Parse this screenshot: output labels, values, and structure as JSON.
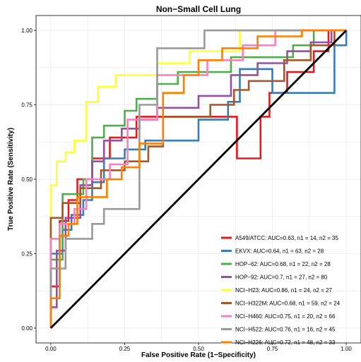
{
  "chart_data": {
    "type": "line",
    "title": "Non−Small Cell Lung",
    "xlabel": "False Positive Rate (1−Specificity)",
    "ylabel": "True Positive Rate (Sensitivity)",
    "xlim": [
      -0.05,
      1.05
    ],
    "ylim": [
      -0.05,
      1.05
    ],
    "x_ticks": [
      "0.00",
      "0.25",
      "0.50",
      "0.75",
      "1.00"
    ],
    "y_ticks": [
      "0.00",
      "0.25",
      "0.50",
      "0.75",
      "1.00"
    ],
    "x_tick_values": [
      0,
      0.25,
      0.5,
      0.75,
      1
    ],
    "y_tick_values": [
      0,
      0.25,
      0.5,
      0.75,
      1
    ],
    "grid": true,
    "legend_position": "bottom-right",
    "reference_line": {
      "x": [
        0,
        1
      ],
      "y": [
        0,
        1
      ],
      "color": "#000000"
    },
    "series": [
      {
        "name": "A549/ATCC: AUC=0.63, n1 = 14, n2 = 35",
        "color": "#e41a1c",
        "x": [
          0,
          0,
          0.03,
          0.03,
          0.06,
          0.06,
          0.09,
          0.09,
          0.14,
          0.14,
          0.2,
          0.2,
          0.29,
          0.29,
          0.43,
          0.63,
          0.63,
          0.71,
          0.71,
          0.74,
          0.74,
          0.8,
          0.8,
          0.89,
          0.89,
          0.94,
          0.94,
          1,
          1
        ],
        "y": [
          0,
          0.14,
          0.14,
          0.36,
          0.36,
          0.43,
          0.43,
          0.5,
          0.5,
          0.57,
          0.57,
          0.64,
          0.64,
          0.71,
          0.71,
          0.71,
          0.57,
          0.57,
          0.71,
          0.71,
          0.79,
          0.79,
          0.86,
          0.86,
          0.93,
          0.93,
          1,
          1,
          1
        ]
      },
      {
        "name": "EKVX: AUC=0.64, n1 = 63, n2 = 28",
        "color": "#377eb8",
        "x": [
          0,
          0,
          0.04,
          0.04,
          0.07,
          0.07,
          0.11,
          0.11,
          0.14,
          0.14,
          0.18,
          0.18,
          0.25,
          0.25,
          0.32,
          0.32,
          0.5,
          0.5,
          0.6,
          0.6,
          0.64,
          0.64,
          0.75,
          0.75,
          0.96,
          0.96,
          1,
          1
        ],
        "y": [
          0,
          0.25,
          0.25,
          0.33,
          0.33,
          0.38,
          0.38,
          0.43,
          0.43,
          0.49,
          0.49,
          0.57,
          0.57,
          0.6,
          0.6,
          0.63,
          0.63,
          0.7,
          0.7,
          0.76,
          0.76,
          0.87,
          0.87,
          0.79,
          0.79,
          0.95,
          0.95,
          1
        ]
      },
      {
        "name": "HOP−62: AUC=0.68, n1 = 22, n2 = 28",
        "color": "#4daf4a",
        "x": [
          0,
          0,
          0.04,
          0.04,
          0.11,
          0.11,
          0.14,
          0.14,
          0.18,
          0.18,
          0.25,
          0.25,
          0.29,
          0.29,
          0.36,
          0.36,
          0.43,
          0.43,
          0.54,
          0.54,
          0.61,
          0.61,
          0.68,
          0.68,
          0.82,
          0.82,
          0.89,
          0.89,
          1,
          1
        ],
        "y": [
          0,
          0.23,
          0.23,
          0.45,
          0.45,
          0.5,
          0.5,
          0.64,
          0.64,
          0.68,
          0.68,
          0.73,
          0.73,
          0.77,
          0.77,
          0.82,
          0.82,
          0.86,
          0.86,
          0.86,
          0.86,
          0.91,
          0.91,
          0.91,
          0.91,
          0.95,
          0.95,
          1,
          1,
          1
        ]
      },
      {
        "name": "HOP−92: AUC=0.7, n1 = 27, n2 = 80",
        "color": "#984ea3",
        "x": [
          0,
          0,
          0.02,
          0.02,
          0.05,
          0.05,
          0.1,
          0.1,
          0.14,
          0.14,
          0.18,
          0.18,
          0.24,
          0.24,
          0.3,
          0.3,
          0.36,
          0.36,
          0.5,
          0.5,
          0.61,
          0.61,
          0.7,
          0.7,
          0.8,
          0.8,
          0.88,
          0.88,
          0.95,
          0.95,
          1,
          1
        ],
        "y": [
          0,
          0.07,
          0.07,
          0.26,
          0.26,
          0.37,
          0.37,
          0.48,
          0.48,
          0.56,
          0.56,
          0.63,
          0.63,
          0.67,
          0.67,
          0.7,
          0.7,
          0.74,
          0.74,
          0.78,
          0.78,
          0.85,
          0.85,
          0.89,
          0.89,
          0.93,
          0.93,
          0.96,
          0.96,
          1,
          1,
          1
        ]
      },
      {
        "name": "NCI−H23: AUC=0.86, n1 = 24, n2 = 27",
        "color": "#ffff33",
        "x": [
          0,
          0,
          0.02,
          0.02,
          0.05,
          0.05,
          0.08,
          0.08,
          0.12,
          0.12,
          0.16,
          0.16,
          0.22,
          0.22,
          0.29,
          0.29,
          0.36,
          0.36,
          0.47,
          0.47,
          0.64,
          0.64,
          0.84,
          0.84,
          1
        ],
        "y": [
          0,
          0.48,
          0.48,
          0.56,
          0.56,
          0.59,
          0.59,
          0.63,
          0.63,
          0.76,
          0.76,
          0.81,
          0.81,
          0.85,
          0.85,
          0.85,
          0.85,
          0.89,
          0.89,
          0.93,
          0.93,
          1,
          1,
          1,
          1
        ]
      },
      {
        "name": "NCI−H322M: AUC=0.68, n1 = 59, n2 = 24",
        "color": "#a65628",
        "x": [
          0,
          0,
          0.04,
          0.04,
          0.1,
          0.1,
          0.17,
          0.17,
          0.25,
          0.25,
          0.33,
          0.33,
          0.38,
          0.38,
          0.54,
          0.54,
          0.62,
          0.62,
          0.67,
          0.67,
          0.79,
          0.79,
          0.88,
          0.88,
          0.96,
          0.96,
          1
        ],
        "y": [
          0,
          0.37,
          0.37,
          0.42,
          0.42,
          0.47,
          0.47,
          0.53,
          0.53,
          0.56,
          0.56,
          0.61,
          0.61,
          0.71,
          0.71,
          0.75,
          0.75,
          0.8,
          0.8,
          0.83,
          0.83,
          0.9,
          0.9,
          0.95,
          0.95,
          1,
          1
        ]
      },
      {
        "name": "NCI−H460: AUC=0.75, n1 = 20, n2 = 66",
        "color": "#f781bf",
        "x": [
          0,
          0,
          0.03,
          0.03,
          0.08,
          0.08,
          0.12,
          0.12,
          0.2,
          0.2,
          0.26,
          0.26,
          0.36,
          0.36,
          0.45,
          0.45,
          0.53,
          0.53,
          0.65,
          0.65,
          0.76,
          0.76,
          0.88,
          0.88,
          1
        ],
        "y": [
          0,
          0.3,
          0.3,
          0.35,
          0.35,
          0.4,
          0.4,
          0.5,
          0.5,
          0.55,
          0.55,
          0.7,
          0.7,
          0.85,
          0.85,
          0.85,
          0.85,
          0.9,
          0.9,
          0.95,
          0.95,
          1,
          1,
          1,
          1
        ]
      },
      {
        "name": "NCI−H522: AUC=0.76, n1 = 16, n2 = 45",
        "color": "#999999",
        "x": [
          0,
          0,
          0.05,
          0.05,
          0.14,
          0.14,
          0.18,
          0.18,
          0.3,
          0.3,
          0.36,
          0.36,
          0.41,
          0.41,
          0.52,
          0.52,
          0.66,
          0.66,
          0.82,
          0.82,
          1
        ],
        "y": [
          0,
          0.2,
          0.2,
          0.3,
          0.3,
          0.35,
          0.35,
          0.4,
          0.4,
          0.75,
          0.75,
          0.94,
          0.94,
          0.94,
          0.94,
          1,
          1,
          1,
          1,
          1,
          1
        ]
      },
      {
        "name": "NCI−H226: AUC=0.72, n1 = 48, n2 = 33",
        "color": "#ff7f00",
        "x": [
          0,
          0,
          0.03,
          0.03,
          0.06,
          0.06,
          0.09,
          0.09,
          0.19,
          0.19,
          0.24,
          0.24,
          0.3,
          0.3,
          0.38,
          0.38,
          0.45,
          0.45,
          0.5,
          0.5,
          0.58,
          0.58,
          0.7,
          0.7,
          0.85,
          0.85,
          1
        ],
        "y": [
          0,
          0.1,
          0.1,
          0.31,
          0.31,
          0.35,
          0.35,
          0.44,
          0.44,
          0.5,
          0.5,
          0.54,
          0.54,
          0.62,
          0.62,
          0.79,
          0.79,
          0.85,
          0.85,
          0.9,
          0.9,
          0.94,
          0.94,
          0.98,
          0.98,
          1,
          1
        ]
      }
    ]
  }
}
